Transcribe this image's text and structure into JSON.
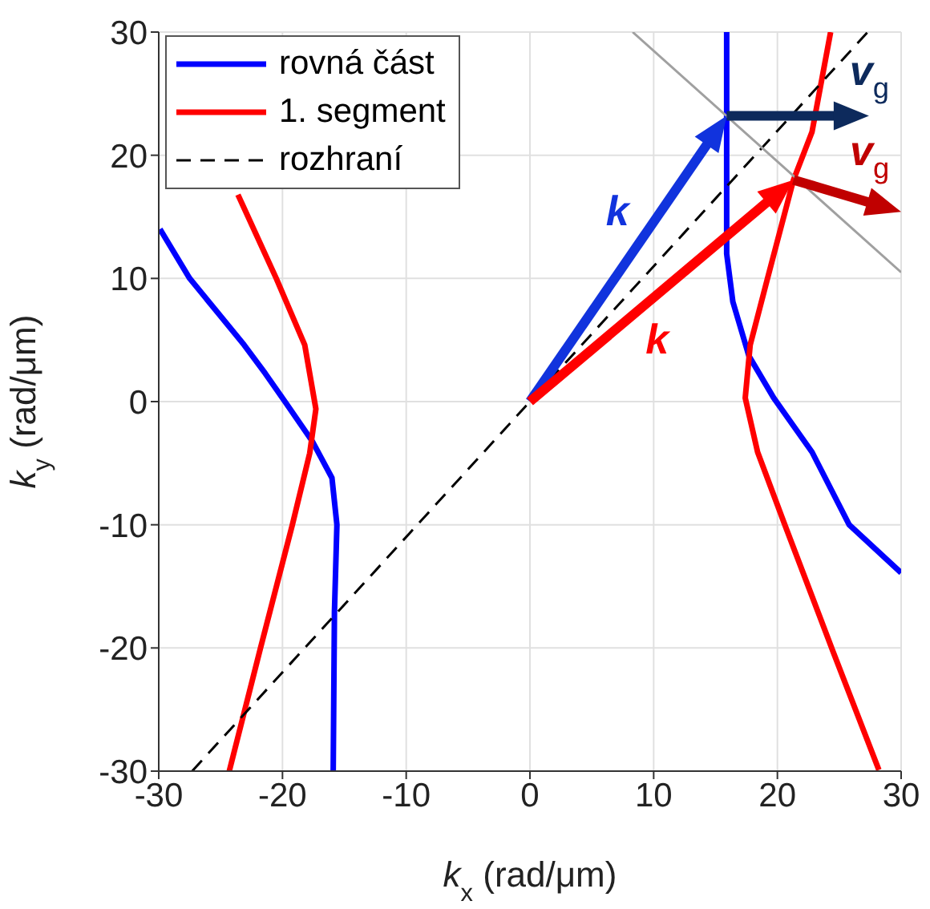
{
  "chart_data": {
    "type": "line",
    "xlabel": "k$_{x}$ (rad/μm)",
    "ylabel": "k$_{y}$ (rad/μm)",
    "xlim": [
      -30,
      30
    ],
    "ylim": [
      -30,
      30
    ],
    "xticks": [
      -30,
      -20,
      -10,
      0,
      10,
      20,
      30
    ],
    "yticks": [
      -30,
      -20,
      -10,
      0,
      10,
      20,
      30
    ],
    "grid": true,
    "legend": "top left",
    "series": [
      {
        "name": "rovná část",
        "color": "#0000ff",
        "x": [
          -29.9,
          -27.5,
          -25.3,
          -23.1,
          -21.4,
          -19.8,
          -17.6,
          -16.0,
          -15.6,
          -15.8,
          -15.9,
          null,
          15.9,
          15.9,
          15.9,
          16.4,
          17.7,
          19.7,
          22.8,
          25.8,
          30.0
        ],
        "values": [
          14.0,
          10.0,
          7.3,
          4.6,
          2.3,
          0.0,
          -3.2,
          -6.2,
          -10.0,
          -17.1,
          -30.0,
          null,
          30.0,
          23.2,
          12.0,
          8.1,
          3.7,
          0.3,
          -4.1,
          -10.0,
          -13.9
        ]
      },
      {
        "name": "1. segment",
        "color": "#ff0000",
        "x": [
          -23.6,
          -20.5,
          -18.2,
          -17.3,
          -17.8,
          -19.2,
          -21.8,
          -24.3,
          null,
          24.3,
          22.8,
          21.3,
          19.2,
          17.8,
          17.4,
          18.4,
          20.6,
          24.5,
          28.2
        ],
        "values": [
          16.8,
          10.0,
          4.6,
          -0.6,
          -4.2,
          -10.0,
          -20.1,
          -30.0,
          null,
          30.0,
          21.9,
          18.0,
          10.0,
          4.6,
          0.3,
          -4.1,
          -10.0,
          -20.3,
          -29.9
        ]
      },
      {
        "name": "rozhraní",
        "color": "#000000",
        "line_style": "dashed",
        "x": [
          -27.3,
          27.3
        ],
        "values": [
          -30,
          30
        ]
      },
      {
        "color": "#a0a0a0",
        "x": [
          8.3,
          30.0
        ],
        "values": [
          30.0,
          10.5
        ]
      }
    ],
    "annotations": [
      "k",
      "k",
      {
        "text": "v$_{g}$",
        "x": 15.9,
        "y": 23.2
      },
      {
        "text": "v$_{g}$",
        "x": 21.3,
        "y": 18.0
      }
    ]
  }
}
